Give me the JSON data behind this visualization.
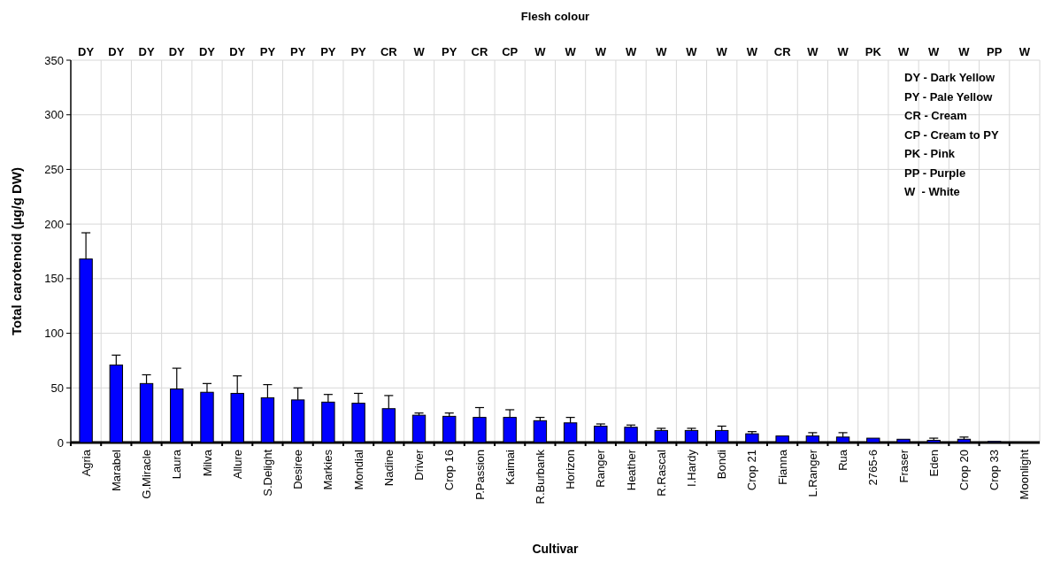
{
  "chart_data": {
    "type": "bar",
    "x2label": "Flesh colour",
    "xlabel": "Cultivar",
    "ylabel": "Total carotenoid (µg/g DW)",
    "categories": [
      "Agria",
      "Marabel",
      "G.Miracle",
      "Laura",
      "Milva",
      "Allure",
      "S.Delight",
      "Desiree",
      "Markies",
      "Mondial",
      "Nadine",
      "Driver",
      "Crop 16",
      "P.Passion",
      "Kaimai",
      "R.Burbank",
      "Horizon",
      "Ranger",
      "Heather",
      "R.Rascal",
      "I.Hardy",
      "Bondi",
      "Crop 21",
      "Fianna",
      "L.Ranger",
      "Rua",
      "2765-6",
      "Fraser",
      "Eden",
      "Crop 20",
      "Crop 33",
      "Moonlight"
    ],
    "values": [
      168,
      71,
      54,
      49,
      46,
      45,
      41,
      39,
      37,
      36,
      31,
      25,
      24,
      23,
      23,
      20,
      18,
      15,
      14,
      11,
      11,
      11,
      8,
      6,
      6,
      5,
      4,
      3,
      2,
      3,
      1,
      0
    ],
    "errors": [
      24,
      9,
      8,
      19,
      8,
      16,
      12,
      11,
      7,
      9,
      12,
      2,
      3,
      9,
      7,
      3,
      5,
      2,
      2,
      2,
      2,
      4,
      2,
      null,
      3,
      4,
      null,
      null,
      2,
      2,
      null,
      null
    ],
    "color": "#0000ff",
    "ylim": [
      0,
      350
    ],
    "yticks": [
      0,
      50,
      100,
      150,
      200,
      250,
      300,
      350
    ],
    "grid": true,
    "annotations": [
      "DY",
      "DY",
      "DY",
      "DY",
      "DY",
      "DY",
      "PY",
      "PY",
      "PY",
      "PY",
      "CR",
      "W",
      "PY",
      "CR",
      "CP",
      "W",
      "W",
      "W",
      "W",
      "W",
      "W",
      "W",
      "W",
      "CR",
      "W",
      "W",
      "PK",
      "W",
      "W",
      "W",
      "PP",
      "W",
      "DY - Dark Yellow",
      "PY - Pale Yellow",
      "CR - Cream",
      "CP - Cream to PY",
      "PK - Pink",
      "PP - Purple",
      "W  - White"
    ]
  }
}
